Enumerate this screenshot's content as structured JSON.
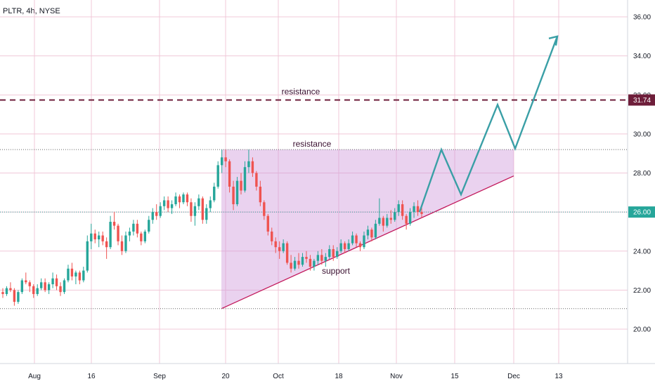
{
  "chart_data": {
    "type": "candlestick",
    "symbol": "PLTR, 4h, NYSE",
    "timeframe": "4h",
    "ylim": [
      18.5,
      37.0
    ],
    "y_ticks": [
      "20.00",
      "22.00",
      "24.00",
      "26.00",
      "28.00",
      "30.00",
      "32.00",
      "34.00",
      "36.00"
    ],
    "x_tick_labels": [
      "Aug",
      "16",
      "Sep",
      "20",
      "Oct",
      "18",
      "Nov",
      "15",
      "Dec",
      "13"
    ],
    "grid": true,
    "annotations": {
      "resistance_upper": {
        "label": "resistance",
        "price": 31.74,
        "price_label": "31.74",
        "style": "dashed",
        "color": "#6e1e3a"
      },
      "resistance_lower": {
        "label": "resistance",
        "price": 29.2,
        "style": "dotted",
        "color": "#555555"
      },
      "support": {
        "label": "support"
      },
      "current_price": {
        "price": 26.0,
        "price_label": "26.00",
        "color": "#26a69a"
      },
      "lower_dotted": {
        "price": 21.05
      }
    },
    "colors": {
      "up": "#26a69a",
      "down": "#ef5350",
      "triangle_fill": "#ce93d8",
      "triangle_line": "#c2185b",
      "projection": "#3a9fa6"
    },
    "candles": [
      [
        21.9,
        22.1,
        21.6,
        21.8
      ],
      [
        21.8,
        22.2,
        21.7,
        22.1
      ],
      [
        22.1,
        22.4,
        21.9,
        22.0
      ],
      [
        22.0,
        22.1,
        21.2,
        21.4
      ],
      [
        21.4,
        22.0,
        21.3,
        21.9
      ],
      [
        21.9,
        22.6,
        21.8,
        22.5
      ],
      [
        22.5,
        22.9,
        22.3,
        22.4
      ],
      [
        22.4,
        22.5,
        21.9,
        22.2
      ],
      [
        22.2,
        22.3,
        21.6,
        21.8
      ],
      [
        21.8,
        22.3,
        21.7,
        22.1
      ],
      [
        22.1,
        22.6,
        22.0,
        22.4
      ],
      [
        22.4,
        22.6,
        21.9,
        22.0
      ],
      [
        22.0,
        22.4,
        21.8,
        22.3
      ],
      [
        22.3,
        22.9,
        22.1,
        22.6
      ],
      [
        22.6,
        22.8,
        22.0,
        22.2
      ],
      [
        22.2,
        22.4,
        21.7,
        21.9
      ],
      [
        21.9,
        22.6,
        21.8,
        22.5
      ],
      [
        22.5,
        23.3,
        22.4,
        23.1
      ],
      [
        23.1,
        23.4,
        22.5,
        22.7
      ],
      [
        22.7,
        23.0,
        22.3,
        22.9
      ],
      [
        22.9,
        23.0,
        22.3,
        22.5
      ],
      [
        22.5,
        23.2,
        22.4,
        23.0
      ],
      [
        23.0,
        24.8,
        22.9,
        24.5
      ],
      [
        24.5,
        25.4,
        24.1,
        24.9
      ],
      [
        24.9,
        25.1,
        24.4,
        24.6
      ],
      [
        24.6,
        25.0,
        24.2,
        24.8
      ],
      [
        24.8,
        25.0,
        24.3,
        24.5
      ],
      [
        24.5,
        24.7,
        23.6,
        24.2
      ],
      [
        24.2,
        25.8,
        24.1,
        25.5
      ],
      [
        25.5,
        26.0,
        25.1,
        25.3
      ],
      [
        25.3,
        25.4,
        24.3,
        24.5
      ],
      [
        24.5,
        24.8,
        23.8,
        24.0
      ],
      [
        24.0,
        25.0,
        23.9,
        24.8
      ],
      [
        24.8,
        25.2,
        24.5,
        25.0
      ],
      [
        25.0,
        25.6,
        24.8,
        25.4
      ],
      [
        25.4,
        25.6,
        24.7,
        24.9
      ],
      [
        24.9,
        25.0,
        24.3,
        24.5
      ],
      [
        24.5,
        25.1,
        24.4,
        25.0
      ],
      [
        25.0,
        25.8,
        24.9,
        25.6
      ],
      [
        25.6,
        26.2,
        25.4,
        26.0
      ],
      [
        26.0,
        26.4,
        25.6,
        25.8
      ],
      [
        25.8,
        26.5,
        25.7,
        26.3
      ],
      [
        26.3,
        26.8,
        26.1,
        26.6
      ],
      [
        26.6,
        26.8,
        26.0,
        26.2
      ],
      [
        26.2,
        26.6,
        25.9,
        26.4
      ],
      [
        26.4,
        27.0,
        26.3,
        26.8
      ],
      [
        26.8,
        26.9,
        26.2,
        26.5
      ],
      [
        26.5,
        27.0,
        26.4,
        26.9
      ],
      [
        26.9,
        27.0,
        26.3,
        26.5
      ],
      [
        26.5,
        26.7,
        25.5,
        25.8
      ],
      [
        25.8,
        26.5,
        25.3,
        26.3
      ],
      [
        26.3,
        26.9,
        26.1,
        26.7
      ],
      [
        26.7,
        26.8,
        25.4,
        25.6
      ],
      [
        25.6,
        26.4,
        25.4,
        26.2
      ],
      [
        26.2,
        26.8,
        26.0,
        26.6
      ],
      [
        26.6,
        27.5,
        26.5,
        27.3
      ],
      [
        27.3,
        28.6,
        27.2,
        28.4
      ],
      [
        28.4,
        29.2,
        28.0,
        28.8
      ],
      [
        28.8,
        29.2,
        28.3,
        28.6
      ],
      [
        28.6,
        28.7,
        27.0,
        27.3
      ],
      [
        27.3,
        27.6,
        26.1,
        26.4
      ],
      [
        26.4,
        27.8,
        26.3,
        27.6
      ],
      [
        27.6,
        28.0,
        26.9,
        27.1
      ],
      [
        27.1,
        28.6,
        27.0,
        28.3
      ],
      [
        28.3,
        29.2,
        28.0,
        28.6
      ],
      [
        28.6,
        28.8,
        27.8,
        28.0
      ],
      [
        28.0,
        28.1,
        27.1,
        27.3
      ],
      [
        27.3,
        27.6,
        26.3,
        26.5
      ],
      [
        26.5,
        26.6,
        25.6,
        25.8
      ],
      [
        25.8,
        25.9,
        24.8,
        25.0
      ],
      [
        25.0,
        25.2,
        24.3,
        24.5
      ],
      [
        24.5,
        24.7,
        23.9,
        24.2
      ],
      [
        24.2,
        24.5,
        23.6,
        24.0
      ],
      [
        24.0,
        24.6,
        23.9,
        24.4
      ],
      [
        24.4,
        24.5,
        23.3,
        23.4
      ],
      [
        23.4,
        23.8,
        22.9,
        23.1
      ],
      [
        23.1,
        23.7,
        23.0,
        23.5
      ],
      [
        23.5,
        23.9,
        23.1,
        23.3
      ],
      [
        23.3,
        23.9,
        23.2,
        23.7
      ],
      [
        23.7,
        24.0,
        23.4,
        23.6
      ],
      [
        23.6,
        23.8,
        23.0,
        23.2
      ],
      [
        23.2,
        23.6,
        23.0,
        23.5
      ],
      [
        23.5,
        24.0,
        23.3,
        23.8
      ],
      [
        23.8,
        24.1,
        23.3,
        23.5
      ],
      [
        23.5,
        23.9,
        23.2,
        23.7
      ],
      [
        23.7,
        24.3,
        23.6,
        24.1
      ],
      [
        24.1,
        24.3,
        23.5,
        23.7
      ],
      [
        23.7,
        24.2,
        23.6,
        24.0
      ],
      [
        24.0,
        24.6,
        23.9,
        24.4
      ],
      [
        24.4,
        24.5,
        23.9,
        24.1
      ],
      [
        24.1,
        24.6,
        24.0,
        24.4
      ],
      [
        24.4,
        25.0,
        24.3,
        24.8
      ],
      [
        24.8,
        24.9,
        24.2,
        24.4
      ],
      [
        24.4,
        24.5,
        24.0,
        24.2
      ],
      [
        24.2,
        25.0,
        24.1,
        24.8
      ],
      [
        24.8,
        25.3,
        24.6,
        25.1
      ],
      [
        25.1,
        25.2,
        24.5,
        24.7
      ],
      [
        24.7,
        25.6,
        24.6,
        25.4
      ],
      [
        25.4,
        26.7,
        25.3,
        25.7
      ],
      [
        25.7,
        25.8,
        25.0,
        25.3
      ],
      [
        25.3,
        25.9,
        25.2,
        25.7
      ],
      [
        25.7,
        26.1,
        25.4,
        25.6
      ],
      [
        25.6,
        26.2,
        25.5,
        26.0
      ],
      [
        26.0,
        26.6,
        25.8,
        26.4
      ],
      [
        26.4,
        26.6,
        25.6,
        25.8
      ],
      [
        25.8,
        25.9,
        25.1,
        25.4
      ],
      [
        25.4,
        26.2,
        25.3,
        26.0
      ],
      [
        26.0,
        26.5,
        25.7,
        26.3
      ],
      [
        26.3,
        26.6,
        25.8,
        26.0
      ],
      [
        26.0,
        26.3,
        25.7,
        25.9
      ]
    ],
    "projection_path": [
      [
        26.0
      ],
      [
        29.2
      ],
      [
        26.9
      ],
      [
        31.5
      ],
      [
        29.25
      ],
      [
        35.0
      ]
    ]
  }
}
